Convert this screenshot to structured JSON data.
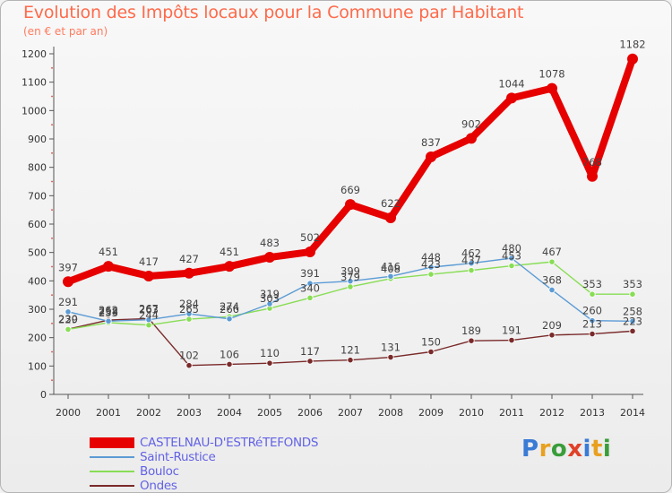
{
  "header": {
    "title": "Evolution des Impôts locaux pour la Commune par Habitant",
    "subtitle": "(en € et par an)"
  },
  "logo": {
    "text": "Proxiti",
    "colors": [
      "#3a7bd5",
      "#e8a020",
      "#3a9d3a",
      "#e0402a",
      "#3a7bd5",
      "#e8a020",
      "#3a9d3a"
    ]
  },
  "chart_data": {
    "type": "line",
    "title": "Evolution des Impôts locaux pour la Commune par Habitant",
    "subtitle": "(en € et par an)",
    "xlabel": "",
    "ylabel": "",
    "ylim": [
      0,
      1200
    ],
    "yticks": [
      0,
      100,
      200,
      300,
      400,
      500,
      600,
      700,
      800,
      900,
      1000,
      1100,
      1200
    ],
    "grid": false,
    "legend_position": "bottom-left",
    "categories": [
      "2000",
      "2001",
      "2002",
      "2003",
      "2004",
      "2005",
      "2006",
      "2007",
      "2008",
      "2009",
      "2010",
      "2011",
      "2012",
      "2013",
      "2014"
    ],
    "series": [
      {
        "name": "CASTELNAU-D'ESTRéTEFONDS",
        "color": "#e60000",
        "values": [
          397,
          451,
          417,
          427,
          451,
          483,
          502,
          669,
          622,
          837,
          902,
          1044,
          1078,
          768,
          1182
        ],
        "labels": [
          "397",
          "451",
          "417",
          "427",
          "451",
          "483",
          "502",
          "669",
          "622",
          "837",
          "902",
          "1044",
          "1078",
          "768",
          "1182"
        ]
      },
      {
        "name": "Saint-Rustice",
        "color": "#5b9bd5",
        "values": [
          291,
          258,
          263,
          284,
          266,
          319,
          391,
          399,
          416,
          448,
          462,
          480,
          368,
          260,
          258
        ],
        "labels": [
          "291",
          "258",
          "263",
          "284",
          "266",
          "319",
          "391",
          "399",
          "416",
          "448",
          "462",
          "480",
          "368",
          "260",
          "258"
        ]
      },
      {
        "name": "Bouloc",
        "color": "#88dd55",
        "values": [
          229,
          253,
          244,
          265,
          274,
          303,
          340,
          379,
          408,
          423,
          437,
          453,
          467,
          353,
          353
        ],
        "labels": [
          "229",
          "253",
          "244",
          "265",
          "274",
          "303",
          "340",
          "379",
          "408",
          "423",
          "437",
          "453",
          "467",
          "353",
          "353"
        ]
      },
      {
        "name": "Ondes",
        "color": "#7a2a2a",
        "values": [
          230,
          262,
          267,
          102,
          106,
          110,
          117,
          121,
          131,
          150,
          189,
          191,
          209,
          213,
          223
        ],
        "labels": [
          "230",
          "262",
          "267",
          "102",
          "106",
          "110",
          "117",
          "121",
          "131",
          "150",
          "189",
          "191",
          "209",
          "213",
          "223"
        ]
      }
    ]
  }
}
